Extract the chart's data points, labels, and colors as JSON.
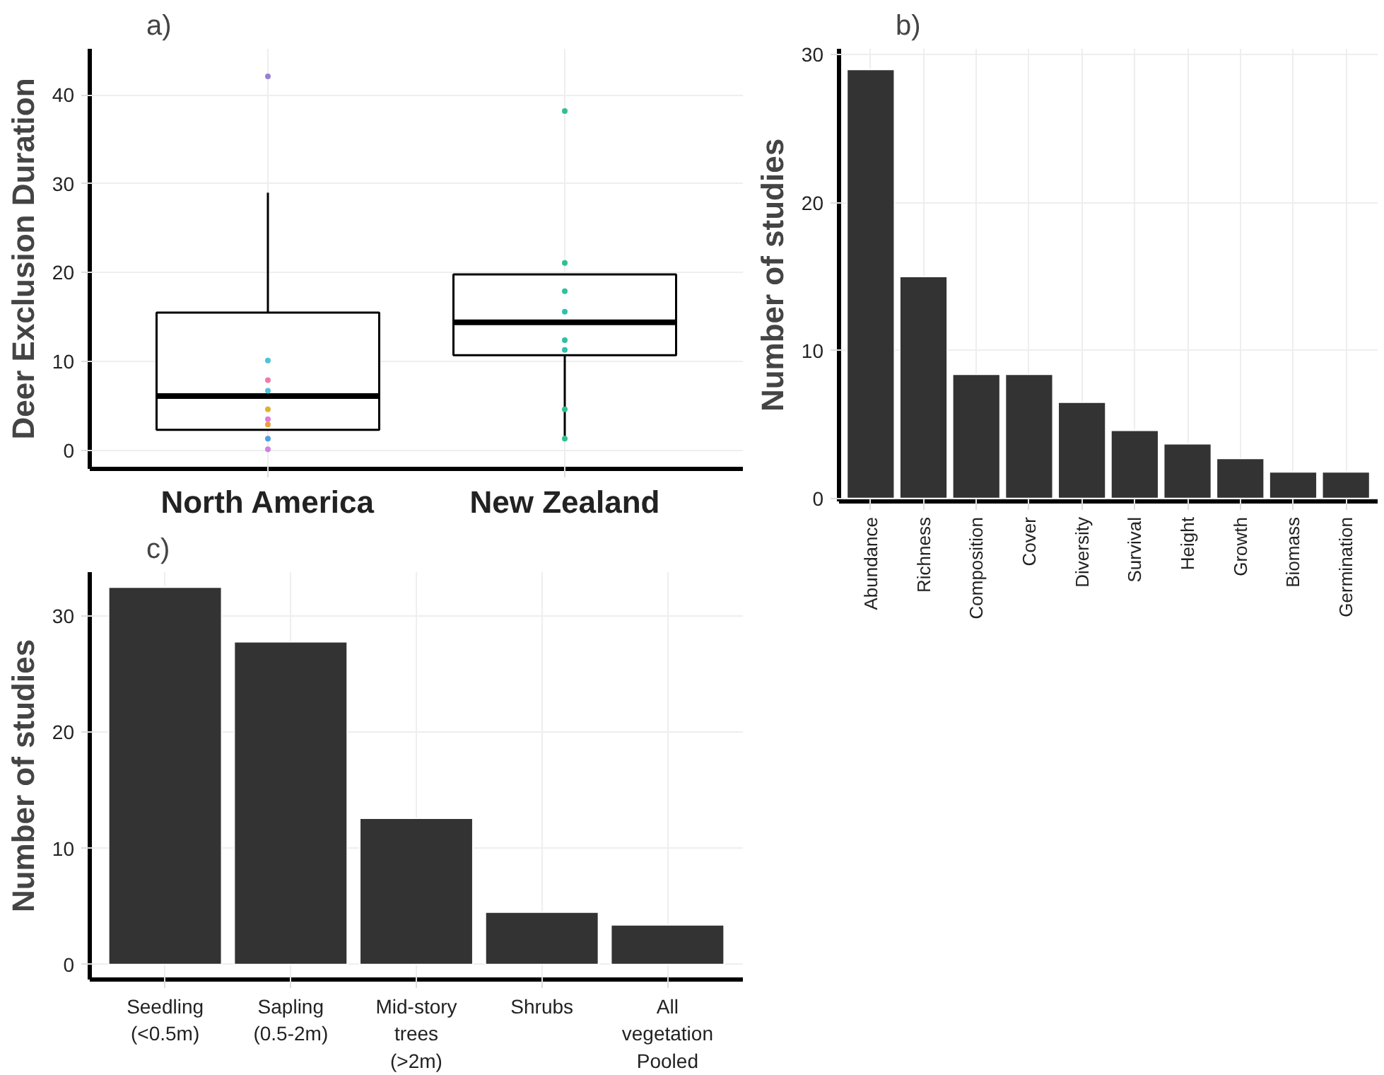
{
  "chart_data": [
    {
      "type": "box",
      "title": "a)",
      "ylabel": "Deer Exclusion Duration",
      "categories": [
        "North America",
        "New Zealand"
      ],
      "ylim": [
        -2.1,
        45.2
      ],
      "yticks": [
        0,
        10,
        20,
        30,
        40
      ],
      "grid": true,
      "boxes": [
        {
          "low": 2.3,
          "q1": 2.3,
          "median": 6.1,
          "q3": 15.5,
          "high": 29
        },
        {
          "low": 1.6,
          "q1": 10.7,
          "median": 14.4,
          "q3": 19.8,
          "high": 19.8
        }
      ],
      "series": [
        {
          "type": "scatter",
          "x": [
            "North America",
            "North America",
            "North America",
            "North America",
            "North America",
            "North America",
            "North America",
            "North America",
            "North America",
            "New Zealand",
            "New Zealand",
            "New Zealand",
            "New Zealand",
            "New Zealand",
            "New Zealand",
            "New Zealand",
            "New Zealand"
          ],
          "values": [
            42.1,
            10.1,
            7.9,
            6.7,
            4.6,
            3.5,
            2.9,
            1.3,
            0.1,
            38.2,
            21.1,
            17.9,
            15.6,
            12.4,
            11.3,
            4.6,
            1.3
          ],
          "colors": [
            "#9b7fd4",
            "#4fc3d9",
            "#f07ab0",
            "#4fc3d9",
            "#e0b030",
            "#e07ae0",
            "#e8a040",
            "#4fa0e0",
            "#d080e0",
            "#30c090",
            "#30c090",
            "#30c0a0",
            "#30c0b0",
            "#30c0a0",
            "#30c0b0",
            "#30c090",
            "#30c090"
          ]
        }
      ]
    },
    {
      "type": "bar",
      "title": "b)",
      "ylabel": "Number of studies",
      "categories": [
        "Abundance",
        "Richness",
        "Composition",
        "Cover",
        "Diversity",
        "Survival",
        "Height",
        "Growth",
        "Biomass",
        "Germination"
      ],
      "values": [
        29,
        15,
        8.4,
        8.4,
        6.5,
        4.6,
        3.7,
        2.7,
        1.8,
        1.8
      ],
      "color": "#333333",
      "ylim": [
        -0.2,
        30.4
      ],
      "yticks": [
        0,
        10,
        20,
        30
      ],
      "grid": true
    },
    {
      "type": "bar",
      "title": "c)",
      "ylabel": "Number of studies",
      "categories": [
        "Seedling\n(<0.5m)",
        "Sapling\n(0.5-2m)",
        "Mid-story\ntrees\n(>2m)",
        "Shrubs",
        "All\nvegetation\nPooled"
      ],
      "values": [
        32.5,
        27.8,
        12.6,
        4.5,
        3.4
      ],
      "color": "#333333",
      "ylim": [
        -1.3,
        33.8
      ],
      "yticks": [
        0,
        10,
        20,
        30
      ],
      "grid": true
    }
  ]
}
